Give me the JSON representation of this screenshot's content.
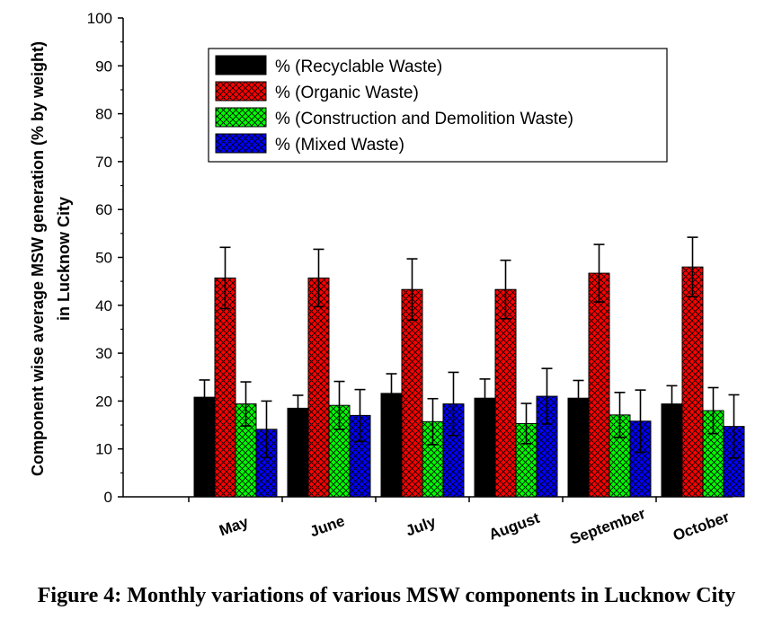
{
  "caption": "Figure 4: Monthly variations of various MSW components in Lucknow City",
  "chart_data": {
    "type": "bar",
    "categories": [
      "May",
      "June",
      "July",
      "August",
      "September",
      "October"
    ],
    "ylabel_line1": "Component wise average MSW generation (% by weight)",
    "ylabel_line2": "in Lucknow City",
    "xlabel": "",
    "ylim": [
      0,
      100
    ],
    "yticks": [
      0,
      10,
      20,
      30,
      40,
      50,
      60,
      70,
      80,
      90,
      100
    ],
    "legend_position": "top-center",
    "series": [
      {
        "name": "% (Recyclable Waste)",
        "color": "#000000",
        "pattern": "solid",
        "values": [
          20.8,
          18.5,
          21.6,
          20.6,
          20.6,
          19.4
        ],
        "errors": [
          3.6,
          2.7,
          4.1,
          4.0,
          3.7,
          3.8
        ]
      },
      {
        "name": "% (Organic Waste)",
        "color": "#ff0000",
        "pattern": "crosshatch",
        "values": [
          45.7,
          45.7,
          43.3,
          43.3,
          46.7,
          48.0
        ],
        "errors": [
          6.4,
          6.0,
          6.4,
          6.1,
          6.0,
          6.2
        ]
      },
      {
        "name": "% (Construction and Demolition Waste)",
        "color": "#00ff00",
        "pattern": "crosshatch",
        "values": [
          19.4,
          19.1,
          15.7,
          15.3,
          17.1,
          18.0
        ],
        "errors": [
          4.6,
          5.0,
          4.8,
          4.2,
          4.7,
          4.8
        ]
      },
      {
        "name": "% (Mixed Waste)",
        "color": "#0000ff",
        "pattern": "crosshatch",
        "values": [
          14.1,
          17.0,
          19.4,
          21.0,
          15.8,
          14.7
        ],
        "errors": [
          5.9,
          5.4,
          6.6,
          5.8,
          6.5,
          6.6
        ]
      }
    ]
  }
}
